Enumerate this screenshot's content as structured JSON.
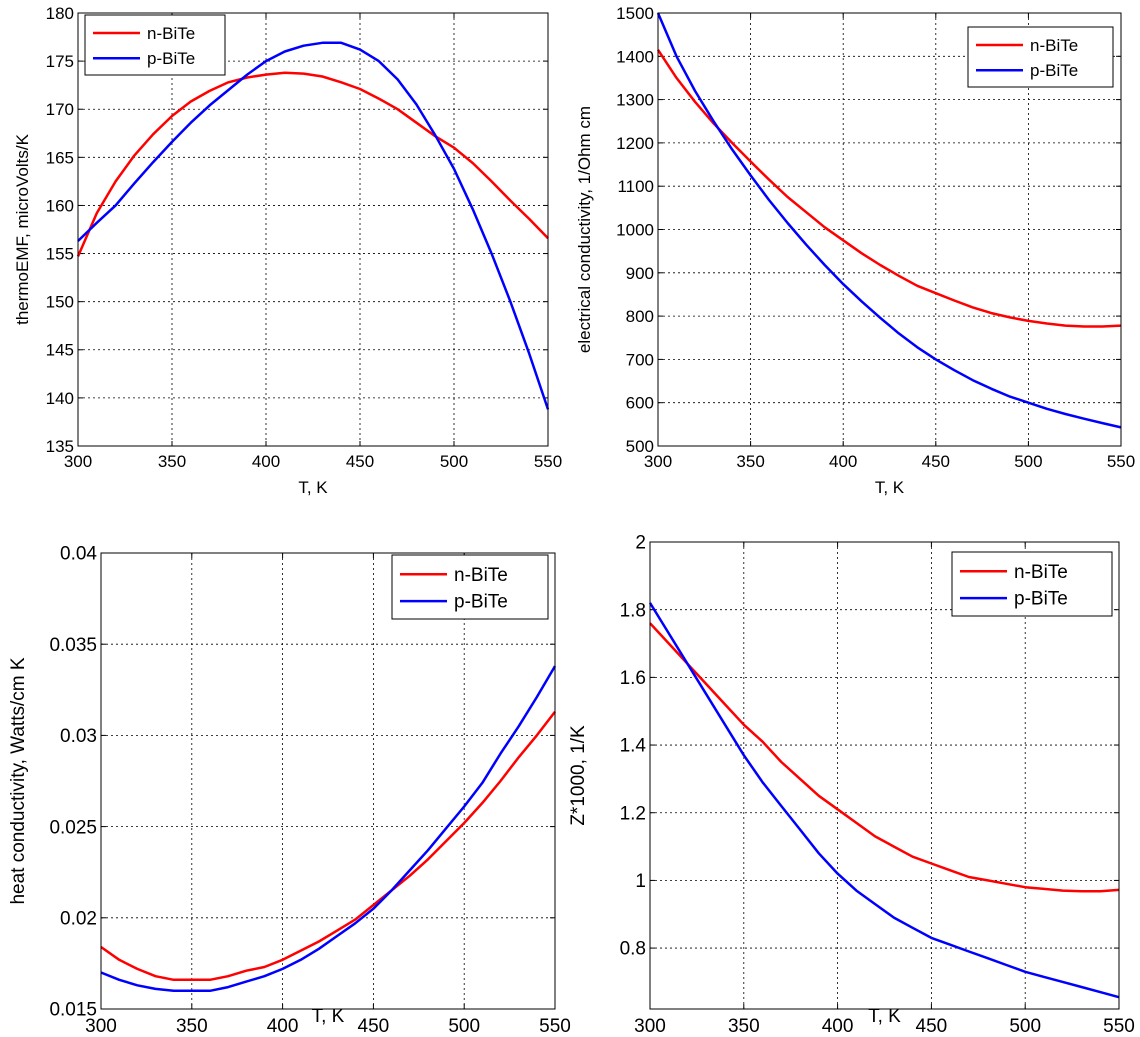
{
  "colors": {
    "n": "#ff0000",
    "p": "#0000ff",
    "grid": "#000000",
    "axes": "#000000"
  },
  "chart_data": [
    {
      "type": "line",
      "ylabel": "thermoEMF, microVolts/K",
      "xlabel": "T, K",
      "xlim": [
        300,
        550
      ],
      "ylim": [
        135,
        180
      ],
      "xticks": [
        "300",
        "350",
        "400",
        "450",
        "500",
        "550"
      ],
      "yticks": [
        "135",
        "140",
        "145",
        "150",
        "155",
        "160",
        "165",
        "170",
        "175",
        "180"
      ],
      "legend": [
        "n-BiTe",
        "p-BiTe"
      ],
      "legend_position": "top-left",
      "series": [
        {
          "name": "n-BiTe",
          "x": [
            300,
            310,
            320,
            330,
            340,
            350,
            360,
            370,
            380,
            390,
            400,
            410,
            420,
            430,
            440,
            450,
            460,
            470,
            480,
            490,
            500,
            510,
            520,
            530,
            540,
            550
          ],
          "values": [
            154.7,
            159.2,
            162.5,
            165.2,
            167.4,
            169.3,
            170.8,
            171.9,
            172.8,
            173.3,
            173.6,
            173.8,
            173.7,
            173.4,
            172.8,
            172.1,
            171.1,
            170.0,
            168.6,
            167.2,
            166.0,
            164.4,
            162.5,
            160.5,
            158.6,
            156.6
          ]
        },
        {
          "name": "p-BiTe",
          "x": [
            300,
            310,
            320,
            330,
            340,
            350,
            360,
            370,
            380,
            390,
            400,
            410,
            420,
            430,
            440,
            450,
            460,
            470,
            480,
            490,
            500,
            510,
            520,
            530,
            540,
            550
          ],
          "values": [
            156.3,
            158.2,
            160.0,
            162.3,
            164.5,
            166.6,
            168.6,
            170.4,
            172.0,
            173.6,
            175.0,
            176.0,
            176.6,
            176.9,
            176.9,
            176.2,
            175.0,
            173.1,
            170.5,
            167.3,
            163.8,
            159.6,
            155.0,
            150.0,
            144.6,
            138.8
          ]
        }
      ]
    },
    {
      "type": "line",
      "ylabel": "electrical conductivity, 1/Ohm cm",
      "xlabel": "T, K",
      "xlim": [
        300,
        550
      ],
      "ylim": [
        500,
        1500
      ],
      "xticks": [
        "300",
        "350",
        "400",
        "450",
        "500",
        "550"
      ],
      "yticks": [
        "500",
        "600",
        "700",
        "800",
        "900",
        "1000",
        "1100",
        "1200",
        "1300",
        "1400",
        "1500"
      ],
      "legend": [
        "n-BiTe",
        "p-BiTe"
      ],
      "legend_position": "top-right",
      "series": [
        {
          "name": "n-BiTe",
          "x": [
            300,
            310,
            320,
            330,
            340,
            350,
            360,
            370,
            380,
            390,
            400,
            410,
            420,
            430,
            440,
            450,
            460,
            470,
            480,
            490,
            500,
            510,
            520,
            530,
            540,
            550
          ],
          "values": [
            1415,
            1350,
            1295,
            1245,
            1200,
            1157,
            1115,
            1075,
            1040,
            1005,
            975,
            945,
            918,
            893,
            870,
            853,
            836,
            820,
            807,
            797,
            789,
            783,
            778,
            776,
            776,
            778
          ]
        },
        {
          "name": "p-BiTe",
          "x": [
            300,
            310,
            320,
            330,
            340,
            350,
            360,
            370,
            380,
            390,
            400,
            410,
            420,
            430,
            440,
            450,
            460,
            470,
            480,
            490,
            500,
            510,
            520,
            530,
            540,
            550
          ],
          "values": [
            1500,
            1400,
            1320,
            1250,
            1185,
            1125,
            1068,
            1015,
            965,
            918,
            874,
            834,
            796,
            760,
            728,
            700,
            675,
            652,
            632,
            614,
            600,
            586,
            574,
            563,
            553,
            543
          ]
        }
      ]
    },
    {
      "type": "line",
      "ylabel": "heat conductivity, Watts/cm K",
      "xlabel": "T, K",
      "xlim": [
        300,
        550
      ],
      "ylim": [
        0.015,
        0.04
      ],
      "xticks": [
        "300",
        "350",
        "400",
        "450",
        "500",
        "550"
      ],
      "yticks": [
        "0.015",
        "0.02",
        "0.025",
        "0.03",
        "0.035",
        "0.04"
      ],
      "legend": [
        "n-BiTe",
        "p-BiTe"
      ],
      "legend_position": "top-right",
      "series": [
        {
          "name": "n-BiTe",
          "x": [
            300,
            310,
            320,
            330,
            340,
            350,
            360,
            370,
            380,
            390,
            400,
            410,
            420,
            430,
            440,
            450,
            460,
            470,
            480,
            490,
            500,
            510,
            520,
            530,
            540,
            550
          ],
          "values": [
            0.0184,
            0.0177,
            0.0172,
            0.0168,
            0.0166,
            0.0166,
            0.0166,
            0.0168,
            0.0171,
            0.0173,
            0.0177,
            0.0182,
            0.0187,
            0.0193,
            0.0199,
            0.0207,
            0.0215,
            0.0223,
            0.0232,
            0.0242,
            0.0252,
            0.0263,
            0.0275,
            0.0288,
            0.03,
            0.0313
          ]
        },
        {
          "name": "p-BiTe",
          "x": [
            300,
            310,
            320,
            330,
            340,
            350,
            360,
            370,
            380,
            390,
            400,
            410,
            420,
            430,
            440,
            450,
            460,
            470,
            480,
            490,
            500,
            510,
            520,
            530,
            540,
            550
          ],
          "values": [
            0.017,
            0.0166,
            0.0163,
            0.0161,
            0.016,
            0.016,
            0.016,
            0.0162,
            0.0165,
            0.0168,
            0.0172,
            0.0177,
            0.0183,
            0.019,
            0.0197,
            0.0205,
            0.0215,
            0.0226,
            0.0237,
            0.0249,
            0.0261,
            0.0274,
            0.029,
            0.0305,
            0.0321,
            0.0338
          ]
        }
      ]
    },
    {
      "type": "line",
      "ylabel": "Z*1000, 1/K",
      "xlabel": "T, K",
      "xlim": [
        300,
        550
      ],
      "ylim": [
        0.62,
        2.0
      ],
      "xticks": [
        "300",
        "350",
        "400",
        "450",
        "500",
        "550"
      ],
      "yticks": [
        "0.8",
        "1",
        "1.2",
        "1.4",
        "1.6",
        "1.8",
        "2"
      ],
      "legend": [
        "n-BiTe",
        "p-BiTe"
      ],
      "legend_position": "top-right",
      "series": [
        {
          "name": "n-BiTe",
          "x": [
            300,
            310,
            320,
            330,
            340,
            350,
            360,
            370,
            380,
            390,
            400,
            410,
            420,
            430,
            440,
            450,
            460,
            470,
            480,
            490,
            500,
            510,
            520,
            530,
            540,
            550
          ],
          "values": [
            1.76,
            1.7,
            1.64,
            1.58,
            1.52,
            1.46,
            1.41,
            1.35,
            1.3,
            1.25,
            1.21,
            1.17,
            1.13,
            1.1,
            1.07,
            1.05,
            1.03,
            1.01,
            1.0,
            0.99,
            0.98,
            0.975,
            0.97,
            0.968,
            0.968,
            0.972
          ]
        },
        {
          "name": "p-BiTe",
          "x": [
            300,
            310,
            320,
            330,
            340,
            350,
            360,
            370,
            380,
            390,
            400,
            410,
            420,
            430,
            440,
            450,
            460,
            470,
            480,
            490,
            500,
            510,
            520,
            530,
            540,
            550
          ],
          "values": [
            1.82,
            1.73,
            1.64,
            1.55,
            1.46,
            1.37,
            1.29,
            1.22,
            1.15,
            1.08,
            1.02,
            0.97,
            0.93,
            0.89,
            0.86,
            0.83,
            0.81,
            0.79,
            0.77,
            0.75,
            0.73,
            0.715,
            0.7,
            0.685,
            0.67,
            0.655
          ]
        }
      ]
    }
  ]
}
